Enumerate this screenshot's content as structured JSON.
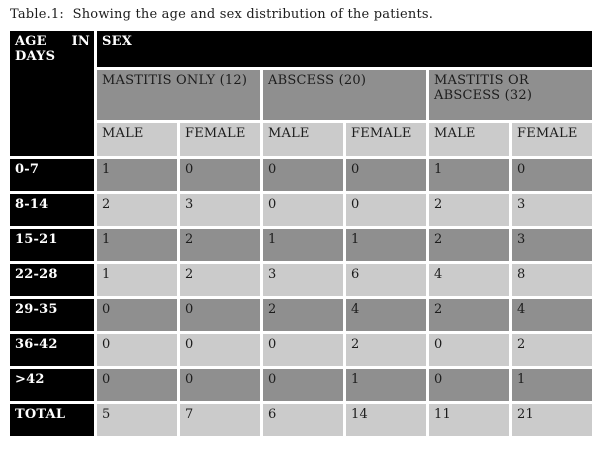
{
  "caption": "Table.1:  Showing the age and sex distribution of the patients.",
  "table": {
    "corner_header": "AGE IN DAYS",
    "sex_header": "SEX",
    "groups": [
      {
        "label": "MASTITIS ONLY (12)"
      },
      {
        "label": "ABSCESS (20)"
      },
      {
        "label": "MASTITIS OR ABSCESS (32)"
      }
    ],
    "sub_headers": [
      "MALE",
      "FEMALE",
      "MALE",
      "FEMALE",
      "MALE",
      "FEMALE"
    ],
    "rows": [
      {
        "label": "0-7",
        "values": [
          1,
          0,
          0,
          0,
          1,
          0
        ]
      },
      {
        "label": "8-14",
        "values": [
          2,
          3,
          0,
          0,
          2,
          3
        ]
      },
      {
        "label": "15-21",
        "values": [
          1,
          2,
          1,
          1,
          2,
          3
        ]
      },
      {
        "label": "22-28",
        "values": [
          1,
          2,
          3,
          6,
          4,
          8
        ]
      },
      {
        "label": "29-35",
        "values": [
          0,
          0,
          2,
          4,
          2,
          4
        ]
      },
      {
        "label": "36-42",
        "values": [
          0,
          0,
          0,
          2,
          0,
          2
        ]
      },
      {
        "label": ">42",
        "values": [
          0,
          0,
          0,
          1,
          0,
          1
        ]
      },
      {
        "label": "TOTAL",
        "values": [
          5,
          7,
          6,
          14,
          11,
          21
        ]
      }
    ]
  },
  "colors": {
    "page_bg": "#ffffff",
    "grid": "#ffffff",
    "header_bg": "#000000",
    "header_text": "#ffffff",
    "group_row_bg": "#8f8f8f",
    "subheader_row_bg": "#cbcbcb",
    "row_dark_bg": "#8f8f8f",
    "row_light_bg": "#cbcbcb",
    "text": "#1c1c1c"
  }
}
